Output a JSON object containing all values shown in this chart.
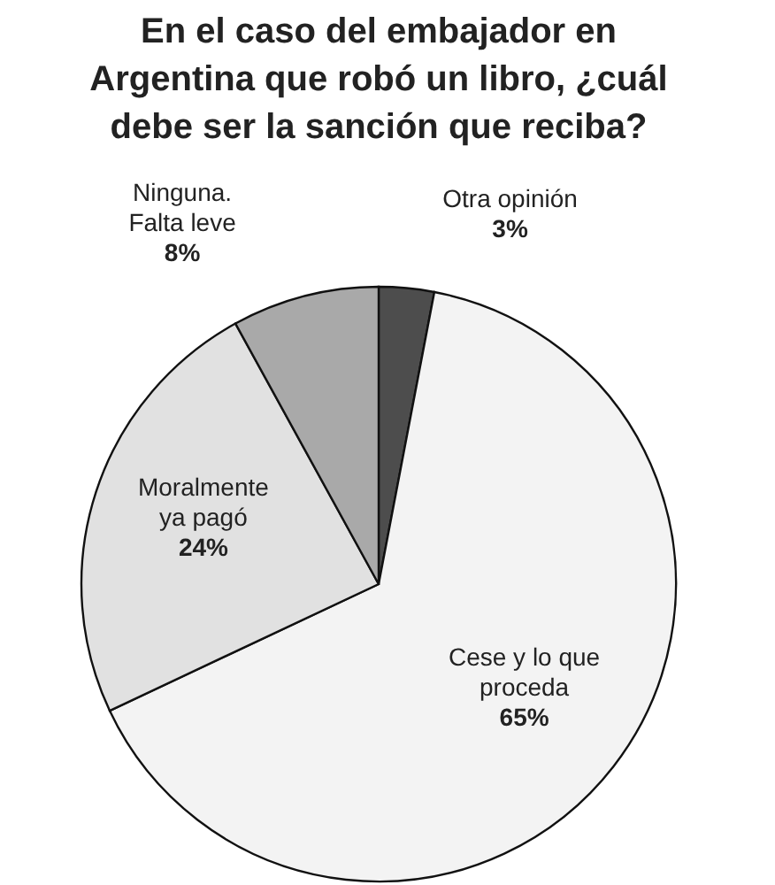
{
  "chart_data": {
    "type": "pie",
    "title": "En el caso del embajador en Argentina que robó un libro, ¿cuál debe ser la sanción que reciba?",
    "categories": [
      "Otra opinión",
      "Cese y lo que\nproceda",
      "Moralmente\nya pagó",
      "Ninguna.\nFalta leve"
    ],
    "values": [
      3,
      65,
      24,
      8
    ],
    "colors": [
      "#4d4d4d",
      "#f3f3f3",
      "#e1e1e1",
      "#a9a9a9"
    ],
    "value_labels": [
      "3%",
      "65%",
      "24%",
      "8%"
    ]
  }
}
